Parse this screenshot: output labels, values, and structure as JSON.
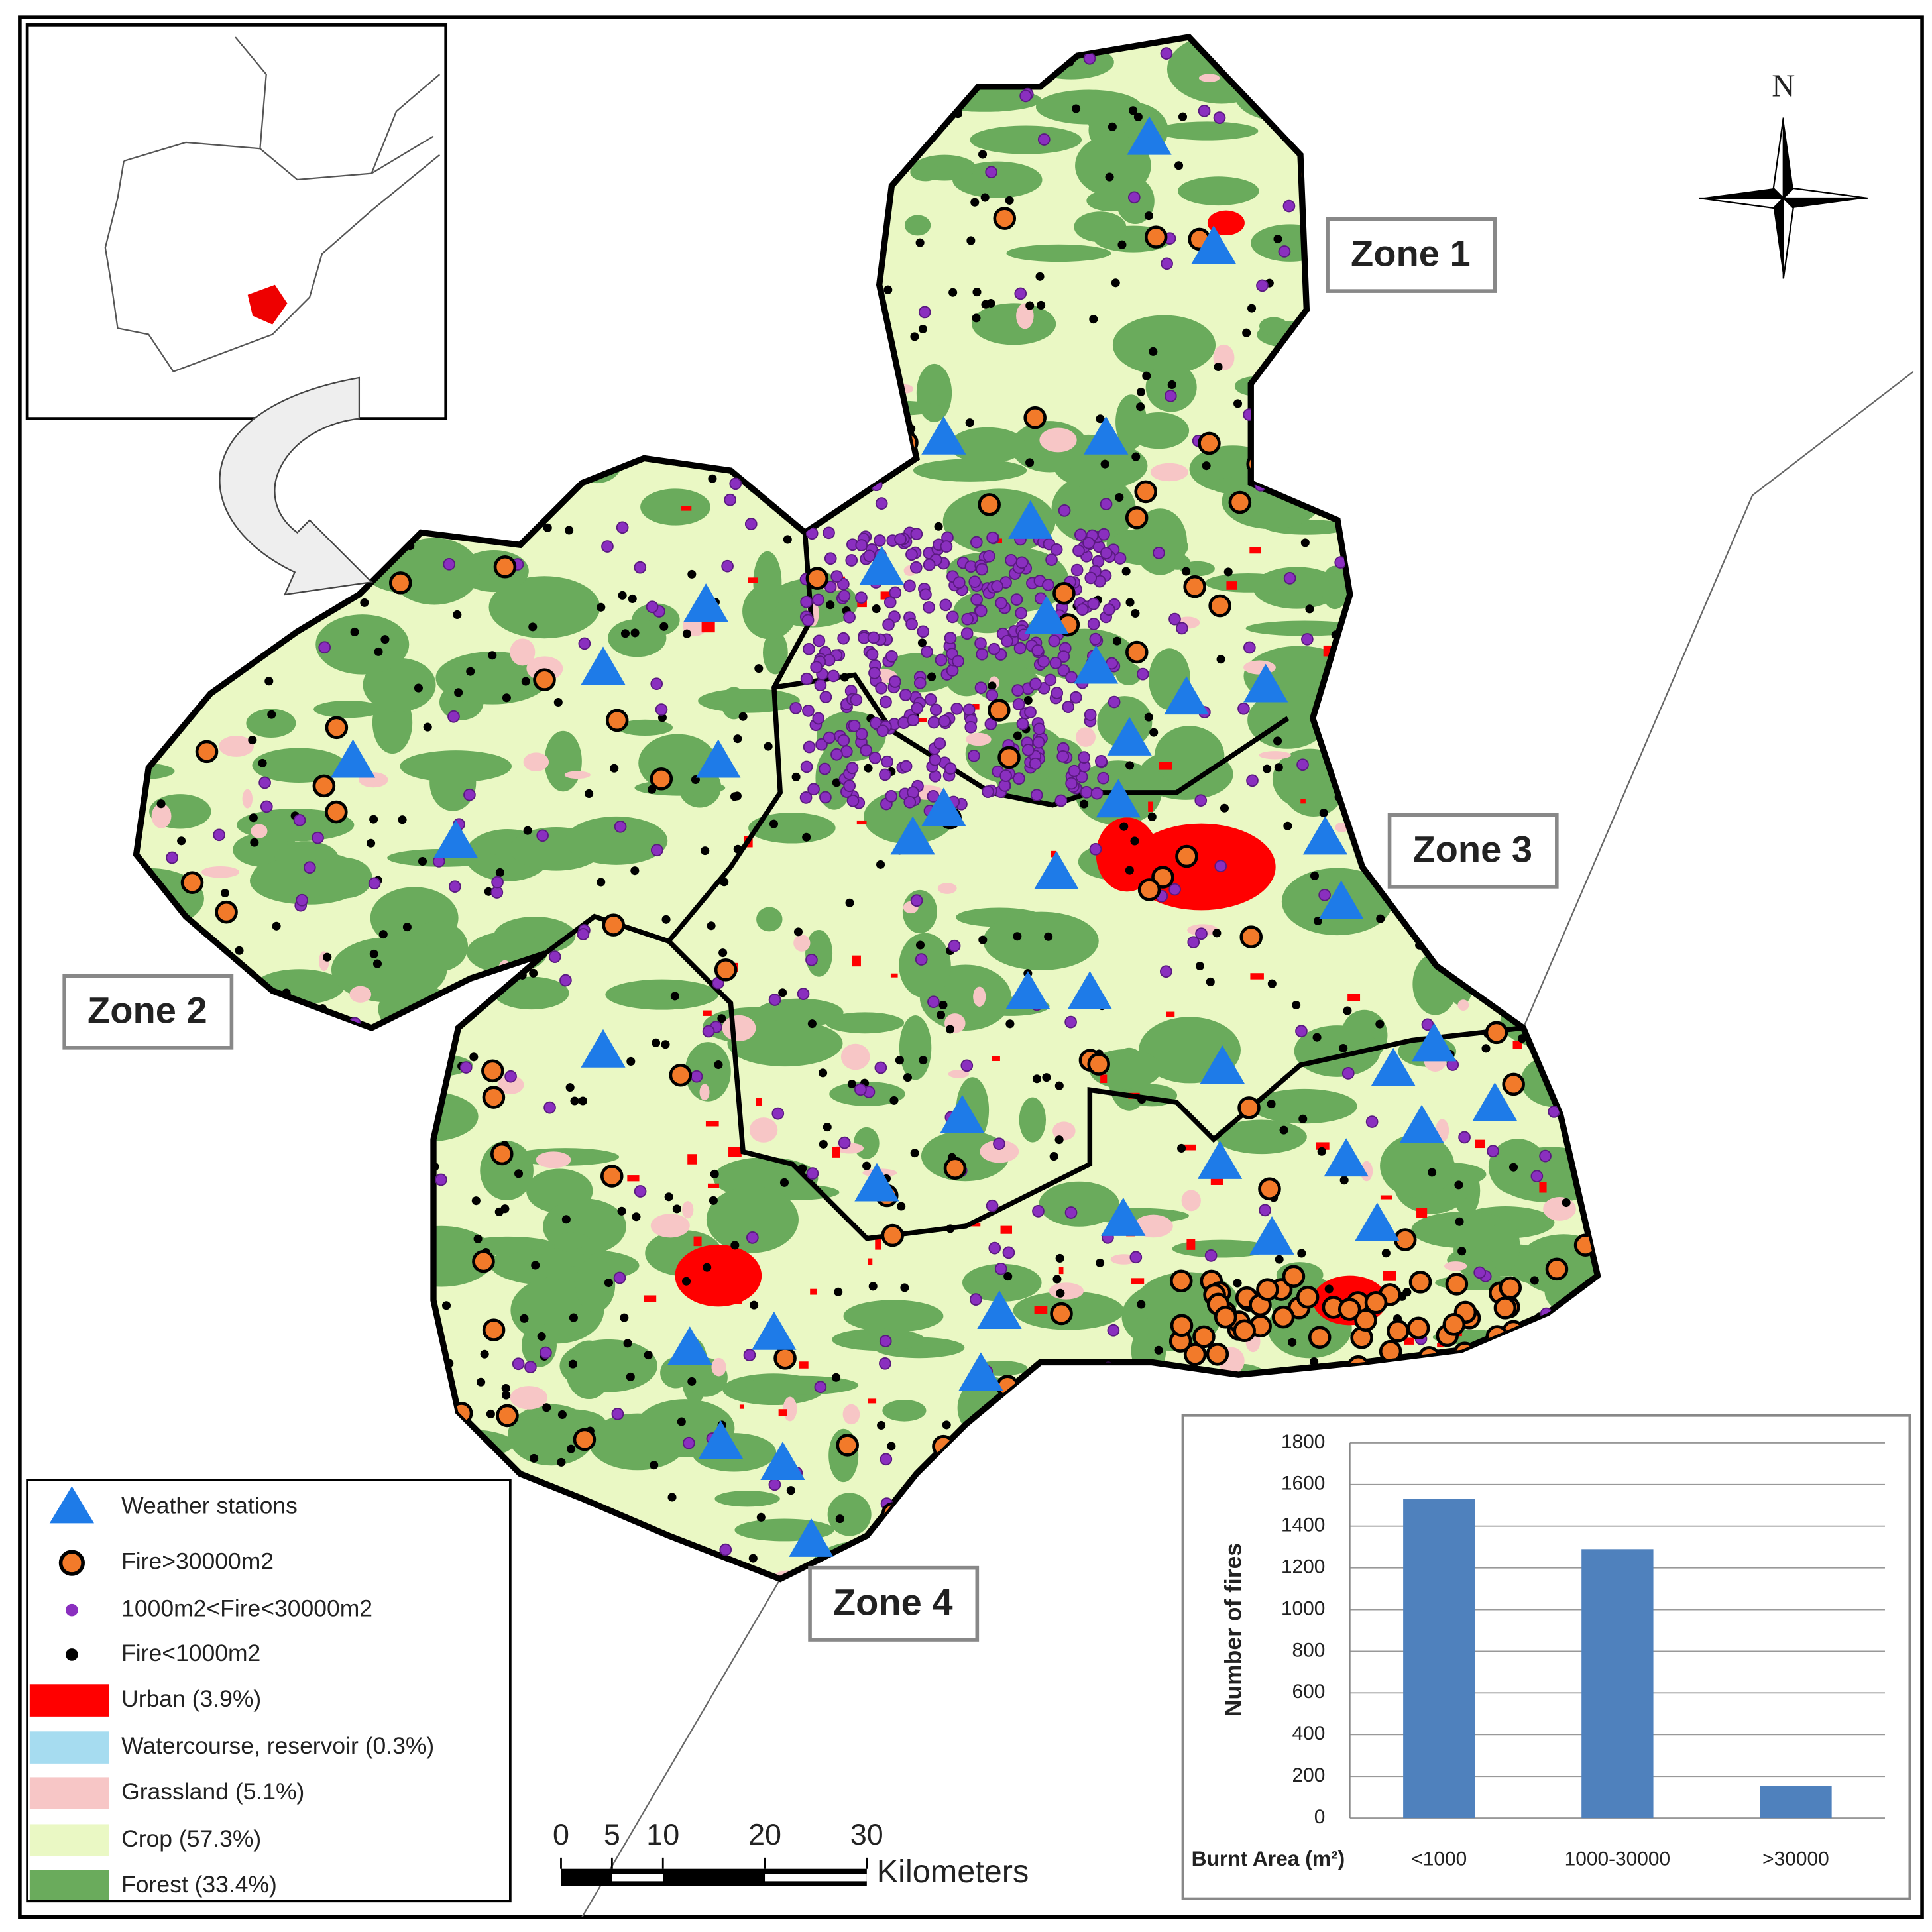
{
  "map": {
    "north": "N",
    "zones": [
      "Zone 1",
      "Zone 2",
      "Zone 3",
      "Zone 4"
    ]
  },
  "legend": [
    "Weather stations",
    "Fire>30000m2",
    "1000m2<Fire<30000m2",
    "Fire<1000m2",
    "Urban (3.9%)",
    "Watercourse, reservoir (0.3%)",
    "Grassland (5.1%)",
    "Crop (57.3%)",
    "Forest (33.4%)"
  ],
  "scale_bar": {
    "ticks": [
      0,
      5,
      10,
      20,
      30
    ],
    "unit": "Kilometers"
  },
  "chart_data": {
    "type": "bar",
    "y_label": "Number of fires",
    "x_label": "Burnt Area (m²)",
    "categories": [
      "<1000",
      "1000-30000",
      ">30000"
    ],
    "values": [
      1530,
      1290,
      155
    ],
    "color": "#4f81bd",
    "ylim": [
      0,
      1800
    ],
    "yticks": [
      0,
      200,
      400,
      600,
      800,
      1000,
      1200,
      1400,
      1600,
      1800
    ],
    "grid": true
  }
}
